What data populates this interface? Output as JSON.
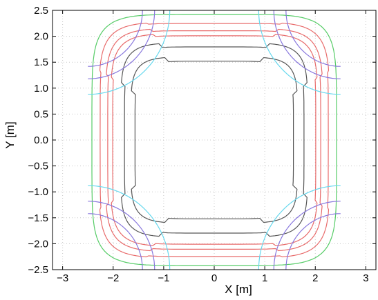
{
  "chart_data": {
    "type": "line",
    "title": "",
    "xlabel": "X [m]",
    "ylabel": "Y [m]",
    "xlim": [
      -3.2,
      3.2
    ],
    "ylim": [
      -2.5,
      2.5
    ],
    "xticks": [
      -3,
      -2,
      -1,
      0,
      1,
      2,
      3
    ],
    "xtick_labels": [
      "−3",
      "−2",
      "−1",
      "0",
      "1",
      "2",
      "3"
    ],
    "yticks": [
      2.5,
      2.0,
      1.5,
      1.0,
      0.5,
      0.0,
      -0.5,
      -1.0,
      -1.5,
      -2.0,
      -2.5
    ],
    "ytick_labels": [
      "2.5",
      "2.0",
      "1.5",
      "1.0",
      "0.5",
      "0.0",
      "−0.5",
      "−1.0",
      "−1.5",
      "−2.0",
      "−2.5"
    ],
    "grid": true,
    "legend": false,
    "contours": [
      {
        "color": "#555555",
        "half_width_x": 1.65,
        "half_height_y": 1.6,
        "shape_exponent": 6,
        "corner_pinch": 0.05
      },
      {
        "color": "#555555",
        "half_width_x": 1.85,
        "half_height_y": 1.87,
        "shape_exponent": 6,
        "corner_pinch": 0.04
      },
      {
        "color": "#e86a6a",
        "half_width_x": 2.05,
        "half_height_y": 2.05,
        "shape_exponent": 6,
        "corner_pinch": 0.02
      },
      {
        "color": "#e86a6a",
        "half_width_x": 2.15,
        "half_height_y": 2.15,
        "shape_exponent": 6,
        "corner_pinch": 0.02
      },
      {
        "color": "#e86a6a",
        "half_width_x": 2.28,
        "half_height_y": 2.27,
        "shape_exponent": 6,
        "corner_pinch": 0.01
      },
      {
        "color": "#55cc66",
        "half_width_x": 2.42,
        "half_height_y": 2.42,
        "shape_exponent": 6,
        "corner_pinch": 0.0
      }
    ],
    "edge_arcs": [
      {
        "color": "#66d8ee",
        "radius": 1.62
      },
      {
        "color": "#8877dd",
        "radius": 1.32
      },
      {
        "color": "#8877dd",
        "radius": 1.08
      }
    ]
  }
}
